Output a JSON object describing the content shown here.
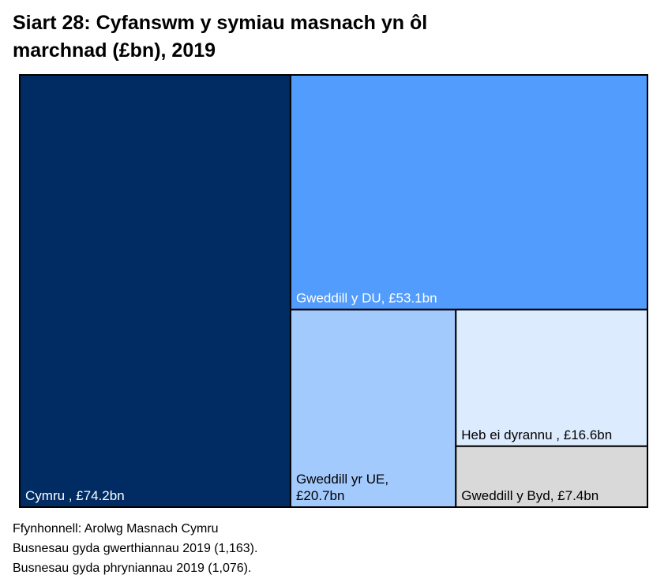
{
  "chart_data": {
    "type": "treemap",
    "title_line1": "Siart 28: Cyfanswm y symiau masnach yn ôl",
    "title_line2": "marchnad (£bn), 2019",
    "unit": "£bn",
    "items": [
      {
        "name": "Cymru",
        "value": 74.2,
        "label": "Cymru , £74.2bn",
        "color": "#002b63",
        "text_color": "#ffffff"
      },
      {
        "name": "Gweddill y DU",
        "value": 53.1,
        "label": "Gweddill y DU, £53.1bn",
        "color": "#519cfc",
        "text_color": "#ffffff"
      },
      {
        "name": "Gweddill yr UE",
        "value": 20.7,
        "label": "Gweddill yr UE,|£20.7bn",
        "color": "#a3cafd",
        "text_color": "#000000"
      },
      {
        "name": "Heb ei dyrannu",
        "value": 16.6,
        "label": "Heb ei dyrannu , £16.6bn",
        "color": "#dcebfe",
        "text_color": "#000000"
      },
      {
        "name": "Gweddill y Byd",
        "value": 7.4,
        "label": "Gweddill y Byd, £7.4bn",
        "color": "#d9d9d9",
        "text_color": "#000000"
      }
    ]
  },
  "footnotes": {
    "source": "Ffynhonnell: Arolwg Masnach Cymru",
    "note1": "Busnesau gyda gwerthiannau 2019 (1,163).",
    "note2": "Busnesau gyda phryniannau 2019 (1,076)."
  }
}
